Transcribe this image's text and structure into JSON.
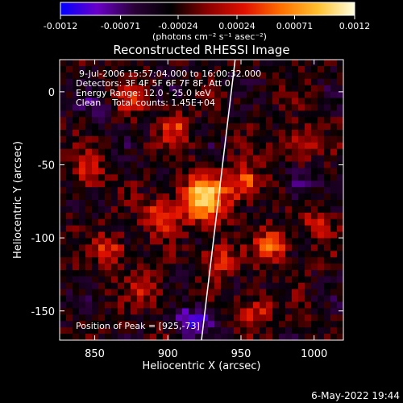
{
  "chart_data": {
    "type": "heatmap",
    "title": "Reconstructed RHESSI Image",
    "xlabel": "Heliocentric X (arcsec)",
    "ylabel": "Heliocentric Y (arcsec)",
    "xlim": [
      826,
      1020
    ],
    "ylim": [
      -170,
      22
    ],
    "x_ticks": [
      850,
      900,
      950,
      1000
    ],
    "y_ticks": [
      0,
      -50,
      -100,
      -150
    ],
    "colorbar": {
      "ticks": [
        "-0.0012",
        "-0.00071",
        "-0.00024",
        "0.00024",
        "0.00071",
        "0.0012"
      ],
      "tick_values": [
        -0.0012,
        -0.00071,
        -0.00024,
        0.00024,
        0.00071,
        0.0012
      ],
      "range": [
        -0.0012,
        0.0012
      ],
      "units_label": "(photons cm⁻² s⁻¹ asec⁻²)",
      "colormap": [
        "#0000ff",
        "#6a00c8",
        "#2b0038",
        "#000000",
        "#8a0000",
        "#e01000",
        "#ff7000",
        "#ffc030",
        "#ffffe0"
      ]
    },
    "annotations": [
      "9-Jul-2006 15:57:04.000 to 16:00:32.000",
      "Detectors: 3F 4F 5F 6F 7F 8F, Att 0",
      "Energy Range: 12.0 - 25.0 keV",
      "Clean    Total counts: 1.45E+04"
    ],
    "peak_label": "Position of Peak = [925,-73]",
    "peak_position": [
      925,
      -73
    ],
    "limb_line": [
      [
        946,
        22
      ],
      [
        923,
        -170
      ]
    ],
    "bright_regions": [
      {
        "x": 925,
        "y": -73,
        "value": 0.0012
      },
      {
        "x": 953,
        "y": -62,
        "value": 0.0009
      },
      {
        "x": 895,
        "y": -85,
        "value": 0.0008
      },
      {
        "x": 860,
        "y": -108,
        "value": 0.0007
      },
      {
        "x": 972,
        "y": -105,
        "value": 0.0008
      },
      {
        "x": 905,
        "y": -25,
        "value": 0.0006
      },
      {
        "x": 935,
        "y": -115,
        "value": 0.0007
      },
      {
        "x": 990,
        "y": -35,
        "value": 0.0006
      },
      {
        "x": 845,
        "y": -55,
        "value": 0.0006
      },
      {
        "x": 885,
        "y": -135,
        "value": 0.0005
      },
      {
        "x": 960,
        "y": -150,
        "value": 0.0006
      },
      {
        "x": 875,
        "y": -5,
        "value": 0.0005
      },
      {
        "x": 1002,
        "y": -90,
        "value": 0.0005
      }
    ],
    "dim_regions": [
      {
        "x": 918,
        "y": -158,
        "value": -0.0008
      },
      {
        "x": 990,
        "y": -65,
        "value": -0.0004
      },
      {
        "x": 850,
        "y": -10,
        "value": -0.0003
      }
    ]
  },
  "footer": {
    "date": "6-May-2022 19:44"
  }
}
